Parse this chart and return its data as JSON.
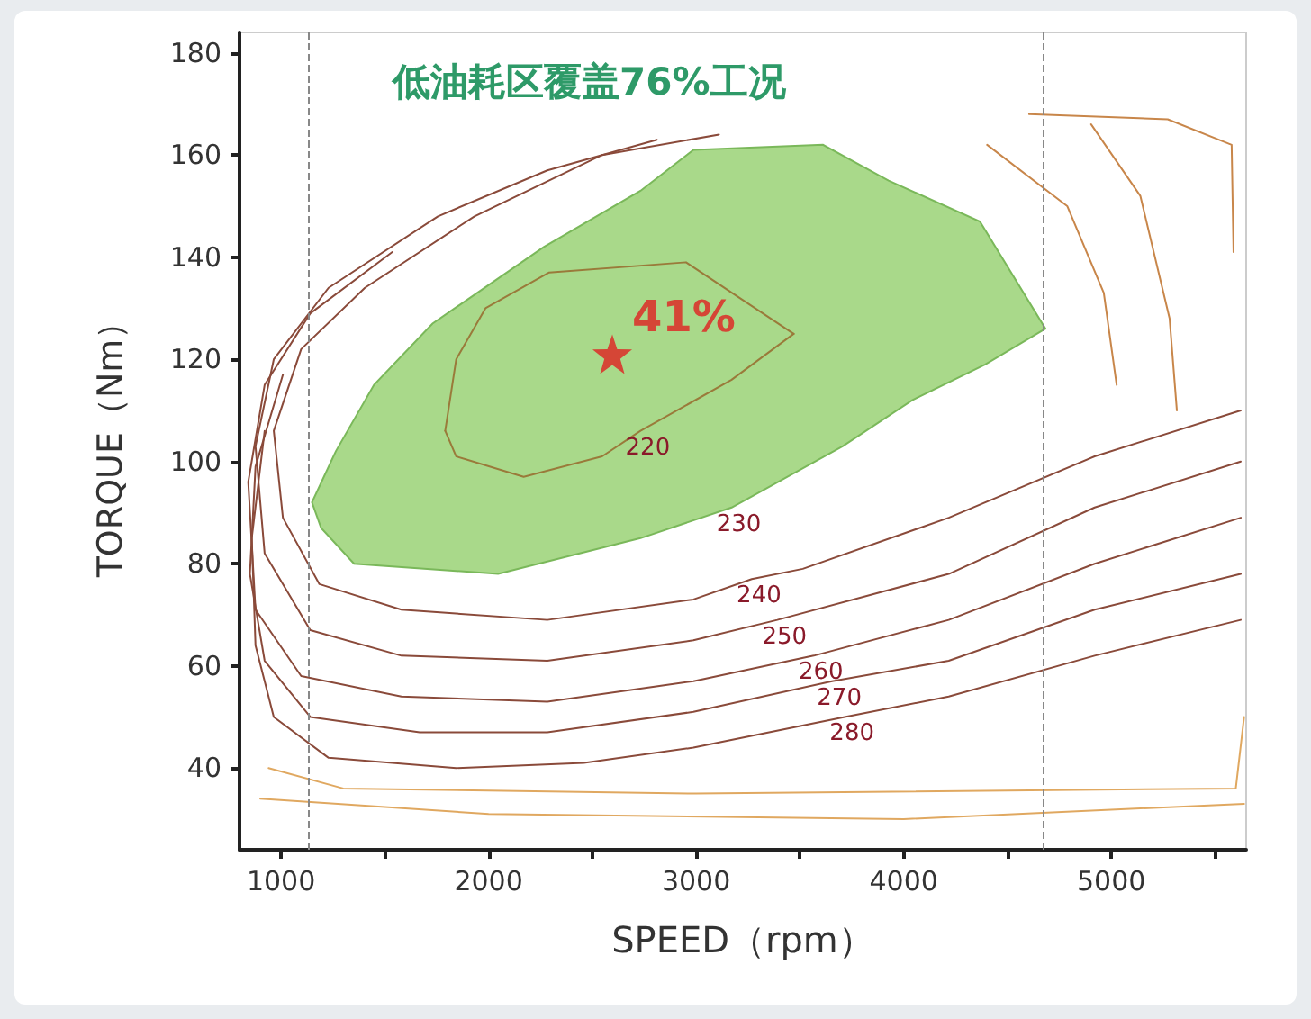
{
  "chart_data": {
    "type": "line",
    "title": "低油耗区覆盖76%工况",
    "xlabel": "SPEED（rpm）",
    "ylabel": "TORQUE（Nm）",
    "xlim": [
      800,
      5650
    ],
    "ylim": [
      24,
      184
    ],
    "xticks": [
      1000,
      {
        "value": 1500,
        "label": null
      },
      2000,
      {
        "value": 2500,
        "label": null
      },
      3000,
      {
        "value": 3500,
        "label": null
      },
      4000,
      {
        "value": 4500,
        "label": null
      },
      5000,
      {
        "value": 5500,
        "label": null
      }
    ],
    "yticks": [
      40,
      60,
      80,
      100,
      120,
      140,
      160,
      180
    ],
    "grid": false,
    "marker": "none",
    "line_style": "solid",
    "ref_lines": [
      {
        "axis": "x",
        "value": 1130,
        "color": "#888888",
        "line_style": "dashed"
      },
      {
        "axis": "x",
        "value": 4670,
        "color": "#888888",
        "line_style": "dashed"
      }
    ],
    "annotations": [
      {
        "text": "230",
        "x": 3171,
        "y": 91
      },
      {
        "text": "220",
        "x": 2732,
        "y": 106
      },
      {
        "text": "240",
        "x": 3268,
        "y": 77
      },
      {
        "text": "250",
        "x": 3391,
        "y": 69
      },
      {
        "text": "260",
        "x": 3567,
        "y": 62
      },
      {
        "text": "270",
        "x": 3655,
        "y": 57
      },
      {
        "text": "280",
        "x": 3716,
        "y": 50
      }
    ],
    "series": [
      {
        "type": "area",
        "color": "#a9d98a",
        "x": [
          3171,
          3707,
          4041,
          4393,
          4683,
          4367,
          3927,
          3611,
          2987,
          2732,
          2266,
          1730,
          1448,
          1264,
          1149,
          1193,
          1352,
          2046,
          2732,
          3171
        ],
        "values": [
          91,
          103,
          112,
          119,
          126,
          147,
          155,
          162,
          161,
          153,
          142,
          127,
          115,
          102,
          92,
          87,
          80,
          78,
          85,
          91
        ]
      },
      {
        "color": "#9a7a3a",
        "x": [
          1791,
          1844,
          2169,
          2547,
          2732,
          3171,
          3470
        ],
        "values": [
          106,
          101,
          97,
          101,
          106,
          116,
          125
        ]
      },
      {
        "color": "#9a7a3a",
        "x": [
          1791,
          1844,
          1985,
          2292,
          2951,
          3470
        ],
        "values": [
          106,
          120,
          130,
          137,
          139,
          125
        ]
      },
      {
        "color": "#8a4a3a",
        "x": [
          5624,
          4920,
          4217,
          3514,
          3268,
          2987,
          2283,
          1580,
          1185,
          1009,
          965,
          1097,
          1404,
          1932,
          2547,
          3110
        ],
        "values": [
          110,
          101,
          89,
          79,
          77,
          73,
          69,
          71,
          76,
          89,
          106,
          122,
          134,
          148,
          160,
          164
        ]
      },
      {
        "color": "#8a4a3a",
        "x": [
          5624,
          4920,
          4217,
          3391,
          2987,
          2283,
          1580,
          1141,
          921,
          877,
          965,
          1229,
          1756,
          2283,
          2811
        ],
        "values": [
          100,
          91,
          78,
          69,
          65,
          61,
          62,
          67,
          82,
          103,
          120,
          134,
          148,
          157,
          163
        ]
      },
      {
        "color": "#8a4a3a",
        "x": [
          5624,
          4920,
          4217,
          3567,
          2987,
          2283,
          1580,
          1097,
          877,
          842,
          921,
          1141,
          1536
        ],
        "values": [
          89,
          80,
          69,
          62,
          57,
          53,
          54,
          58,
          71,
          96,
          115,
          129,
          141
        ]
      },
      {
        "color": "#8a4a3a",
        "x": [
          5624,
          4920,
          4217,
          3655,
          2987,
          2283,
          1668,
          1141,
          921,
          850,
          877,
          1009
        ],
        "values": [
          78,
          71,
          61,
          57,
          51,
          47,
          47,
          50,
          61,
          78,
          99,
          117
        ]
      },
      {
        "color": "#8a4a3a",
        "x": [
          5624,
          4920,
          4217,
          3716,
          2987,
          2459,
          1844,
          1229,
          965,
          877,
          859,
          921
        ],
        "values": [
          69,
          62,
          54,
          50,
          44,
          41,
          40,
          42,
          50,
          64,
          85,
          106
        ]
      },
      {
        "color": "#c8864a",
        "x": [
          4402,
          4788,
          4964,
          5026
        ],
        "values": [
          162,
          150,
          133,
          115
        ]
      },
      {
        "color": "#c8864a",
        "x": [
          4903,
          5140,
          5281,
          5316
        ],
        "values": [
          166,
          152,
          128,
          110
        ]
      },
      {
        "color": "#c8864a",
        "x": [
          4604,
          5272,
          5580,
          5589
        ],
        "values": [
          168,
          167,
          162,
          141
        ]
      },
      {
        "color": "#e0a860",
        "x": [
          940,
          1300,
          3000,
          5600,
          5640
        ],
        "values": [
          40,
          36,
          35,
          36,
          50
        ]
      },
      {
        "color": "#e0a860",
        "x": [
          900,
          2000,
          4000,
          5640
        ],
        "values": [
          34,
          31,
          30,
          33
        ]
      },
      {
        "type": "scatter",
        "name": "41%",
        "marker": "star",
        "color": "#e02020",
        "x": [
          2596
        ],
        "values": [
          121
        ]
      }
    ]
  }
}
